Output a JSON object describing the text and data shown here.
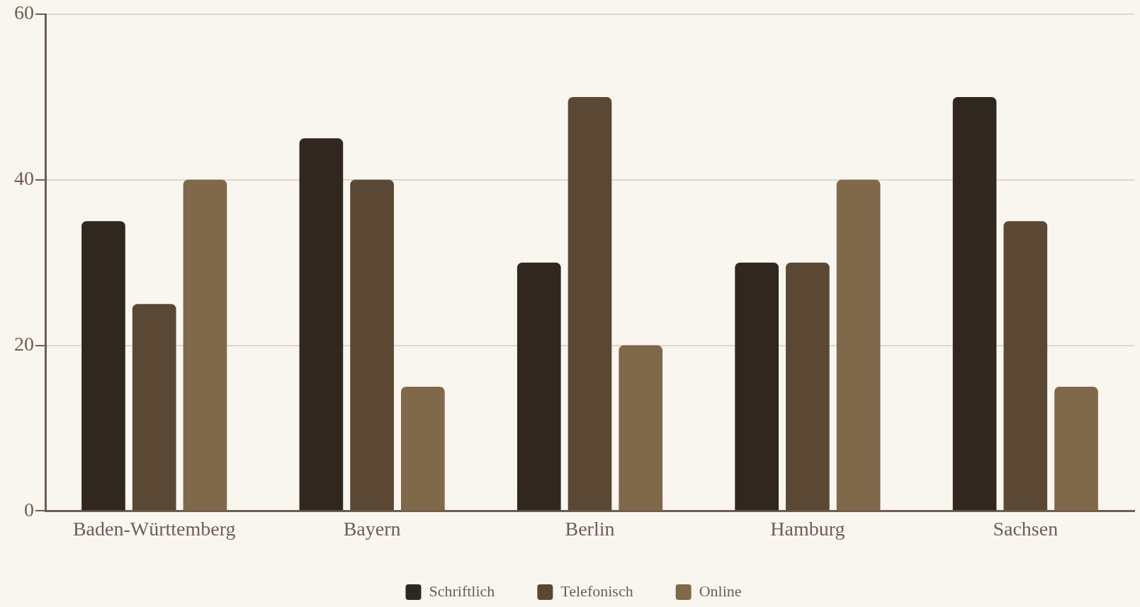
{
  "chart_data": {
    "type": "bar",
    "categories": [
      "Baden-Württemberg",
      "Bayern",
      "Berlin",
      "Hamburg",
      "Sachsen"
    ],
    "series": [
      {
        "name": "Schriftlich",
        "color": "#30271e",
        "values": [
          35,
          45,
          30,
          30,
          50
        ]
      },
      {
        "name": "Telefonisch",
        "color": "#5a4835",
        "values": [
          25,
          40,
          50,
          30,
          35
        ]
      },
      {
        "name": "Online",
        "color": "#80684b",
        "values": [
          40,
          15,
          20,
          40,
          15
        ]
      }
    ],
    "ylim": [
      0,
      60
    ],
    "yticks": [
      0,
      20,
      40,
      60
    ],
    "grid": "y",
    "legend": "bottom"
  }
}
